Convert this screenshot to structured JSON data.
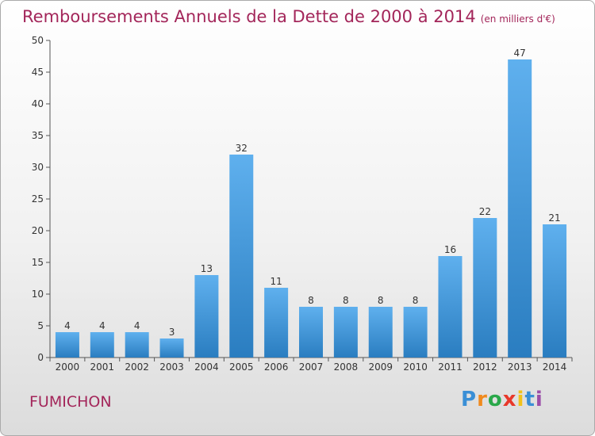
{
  "title": "Remboursements Annuels de la Dette de 2000 à 2014",
  "unit": "(en milliers d'€)",
  "place": "FUMICHON",
  "logo": {
    "letters": [
      "P",
      "r",
      "o",
      "x",
      "i",
      "t",
      "i"
    ],
    "colors": [
      "#3a8fd6",
      "#f08a1e",
      "#2aa84a",
      "#e8382a",
      "#f2c21b",
      "#3a8fd6",
      "#9c4ea8"
    ]
  },
  "colors": {
    "title": "#a3265a",
    "bar_light": "#5fb0ee",
    "bar_dark": "#2a7dc0"
  },
  "chart_data": {
    "type": "bar",
    "categories": [
      "2000",
      "2001",
      "2002",
      "2003",
      "2004",
      "2005",
      "2006",
      "2007",
      "2008",
      "2009",
      "2010",
      "2011",
      "2012",
      "2013",
      "2014"
    ],
    "values": [
      4,
      4,
      4,
      3,
      13,
      32,
      11,
      8,
      8,
      8,
      8,
      16,
      22,
      47,
      21
    ],
    "ylim": [
      0,
      50
    ],
    "yticks": [
      0,
      5,
      10,
      15,
      20,
      25,
      30,
      35,
      40,
      45,
      50
    ],
    "grid": false
  }
}
